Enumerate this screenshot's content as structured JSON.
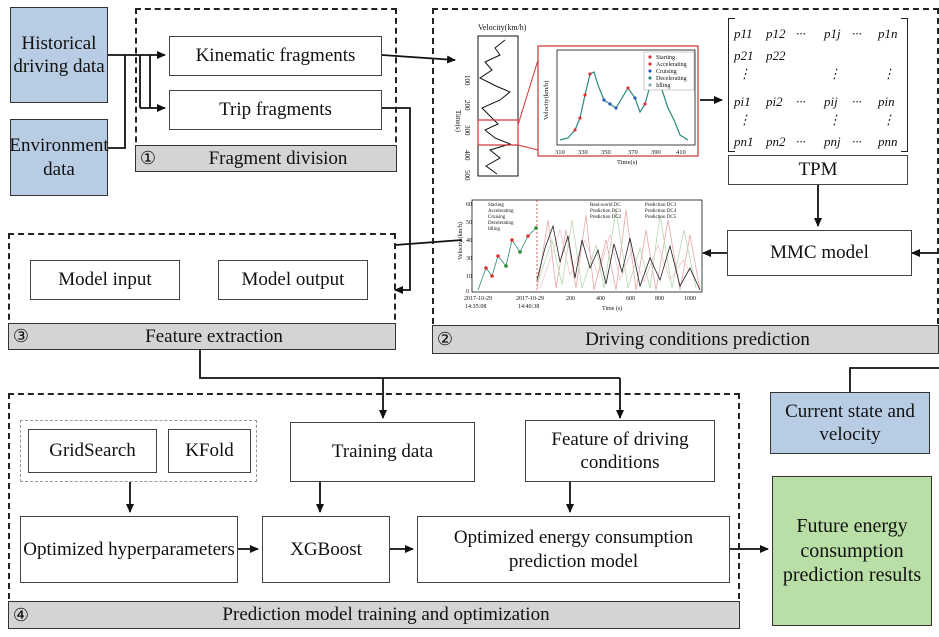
{
  "inputs": {
    "historical": "Historical driving data",
    "environment": "Environment data",
    "current": "Current state and velocity"
  },
  "section1": {
    "num": "①",
    "title": "Fragment division",
    "kinematic": "Kinematic fragments",
    "trip": "Trip fragments"
  },
  "section2": {
    "num": "②",
    "title": "Driving conditions prediction",
    "tpm": "TPM",
    "mmc": "MMC model",
    "matrix": {
      "r1": [
        "p11",
        "p12",
        "···",
        "p1j",
        "···",
        "p1n"
      ],
      "r2": [
        "p21",
        "p22"
      ],
      "r4": [
        "pi1",
        "pi2",
        "···",
        "pij",
        "···",
        "pin"
      ],
      "r6": [
        "pn1",
        "pn2",
        "···",
        "pnj",
        "···",
        "pnn"
      ]
    },
    "chart1": {
      "title": "Velocity(km/h)",
      "xlabel": "Time(s)",
      "xticks": [
        "310",
        "320",
        "330",
        "340",
        "350",
        "360",
        "370",
        "380",
        "390",
        "400",
        "410"
      ],
      "ylabel": "Velocity(km/h)",
      "legend": [
        "Starting",
        "Accelerating",
        "Cruising",
        "Decelerating",
        "Idling"
      ],
      "left_ylabel": "Time(s)",
      "left_ticks": [
        "100",
        "200",
        "300",
        "400",
        "500"
      ]
    },
    "chart2": {
      "ylabel": "Velocity (km/h)",
      "xlabel": "Time (s)",
      "xticks": [
        "200",
        "400",
        "600",
        "800",
        "1000"
      ],
      "date1": "2017-10-29 14:35:08",
      "date2": "2017-10-29 14:40:38",
      "legend": [
        "Starting",
        "Accelerating",
        "Cruising",
        "Decelerating",
        "Idling",
        "Real-world DC",
        "Prediction DC1",
        "Prediction DC2",
        "Prediction DC3",
        "Prediction DC4",
        "Prediction DC5"
      ]
    }
  },
  "section3": {
    "num": "③",
    "title": "Feature extraction",
    "input": "Model input",
    "output": "Model output"
  },
  "section4": {
    "num": "④",
    "title": "Prediction model training and optimization",
    "gridsearch": "GridSearch",
    "kfold": "KFold",
    "training": "Training data",
    "feature": "Feature of driving conditions",
    "hyper": "Optimized hyperparameters",
    "xgboost": "XGBoost",
    "model": "Optimized energy consumption prediction model"
  },
  "result": "Future energy consumption prediction results",
  "colors": {
    "blue": "#b8cde4",
    "green": "#b9dfa6",
    "gray": "#d4d4d4"
  }
}
